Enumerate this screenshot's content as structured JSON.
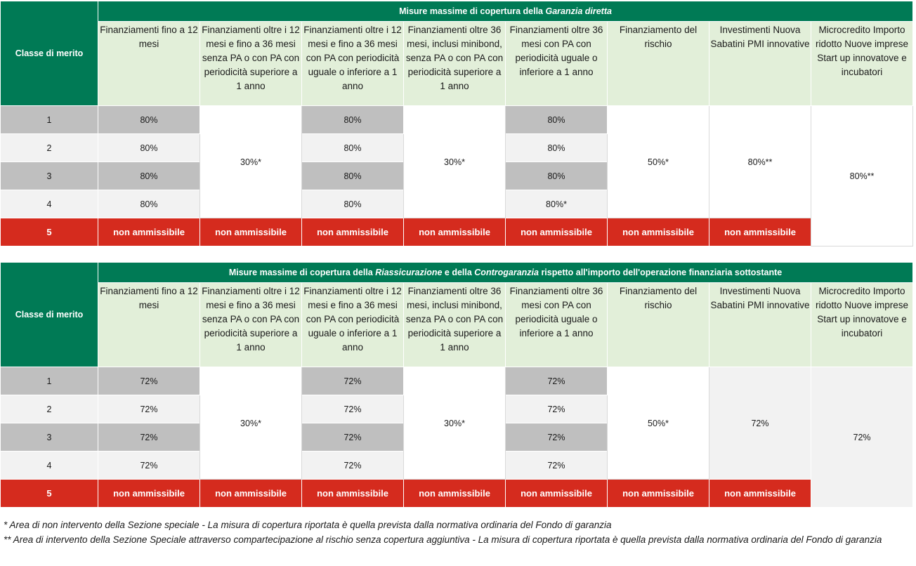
{
  "tables": [
    {
      "title_pre": "Misure massime di copertura della ",
      "title_em1": "Garanzia diretta",
      "title_mid": "",
      "title_em2": "",
      "title_post": "",
      "classe_label": "Classe di merito",
      "headers": [
        "Finanziamenti fino a 12 mesi",
        "Finanziamenti oltre i 12 mesi e fino a 36 mesi senza PA o con PA con periodicità superiore a 1 anno",
        "Finanziamenti oltre i 12 mesi e fino a 36 mesi con PA con periodicità uguale o inferiore a 1 anno",
        "Finanziamenti oltre 36 mesi, inclusi minibond, senza PA o con PA con periodicità superiore a 1 anno",
        "Finanziamenti oltre 36 mesi con PA con periodicità uguale o inferiore a 1 anno",
        "Finanziamento del rischio",
        "Investimenti Nuova Sabatini PMI innovative",
        "Microcredito Importo ridotto Nuove imprese Start up innovatove e incubatori"
      ],
      "classes": [
        "1",
        "2",
        "3",
        "4",
        "5"
      ],
      "col1": [
        "80%",
        "80%",
        "80%",
        "80%"
      ],
      "col2": "30%*",
      "col3": [
        "80%",
        "80%",
        "80%",
        "80%"
      ],
      "col4": "30%*",
      "col5": [
        "80%",
        "80%",
        "80%",
        "80%*"
      ],
      "col6": "50%*",
      "col7": "80%**",
      "col8": "80%**",
      "non_ammissibile": "non ammissibile"
    },
    {
      "title_pre": "Misure massime di copertura della ",
      "title_em1": "Riassicurazione",
      "title_mid": " e della ",
      "title_em2": "Controgaranzia",
      "title_post": " rispetto all'importo dell'operazione finanziaria sottostante",
      "classe_label": "Classe di merito",
      "headers": [
        "Finanziamenti fino a 12 mesi",
        "Finanziamenti oltre i 12 mesi e fino a 36 mesi senza PA o con PA con periodicità superiore a 1 anno",
        "Finanziamenti oltre i 12 mesi e fino a 36 mesi con PA con periodicità uguale o inferiore a 1 anno",
        "Finanziamenti oltre 36 mesi, inclusi minibond, senza PA o con PA con periodicità superiore a 1 anno",
        "Finanziamenti oltre 36 mesi con PA con periodicità uguale o inferiore a 1 anno",
        "Finanziamento del rischio",
        "Investimenti Nuova Sabatini PMI innovative",
        "Microcredito Importo ridotto Nuove imprese Start up innovatove e incubatori"
      ],
      "classes": [
        "1",
        "2",
        "3",
        "4",
        "5"
      ],
      "col1": [
        "72%",
        "72%",
        "72%",
        "72%"
      ],
      "col2": "30%*",
      "col3": [
        "72%",
        "72%",
        "72%",
        "72%"
      ],
      "col4": "30%*",
      "col5": [
        "72%",
        "72%",
        "72%",
        "72%"
      ],
      "col6": "50%*",
      "col7": "72%",
      "col8": "72%",
      "non_ammissibile": "non ammissibile"
    }
  ],
  "footnotes": [
    "* Area di non intervento della Sezione speciale - La misura di copertura riportata è quella prevista dalla normativa ordinaria del Fondo di garanzia",
    "** Area di intervento della Sezione Speciale attraverso compartecipazione al rischio senza copertura aggiuntiva - La misura di copertura riportata è quella prevista dalla normativa ordinaria del Fondo di garanzia"
  ],
  "colors": {
    "header_green": "#007a55",
    "header_light": "#e2efd9",
    "red": "#d52b1e",
    "gray_dark": "#bfbfbf",
    "gray_light": "#f2f2f2"
  }
}
